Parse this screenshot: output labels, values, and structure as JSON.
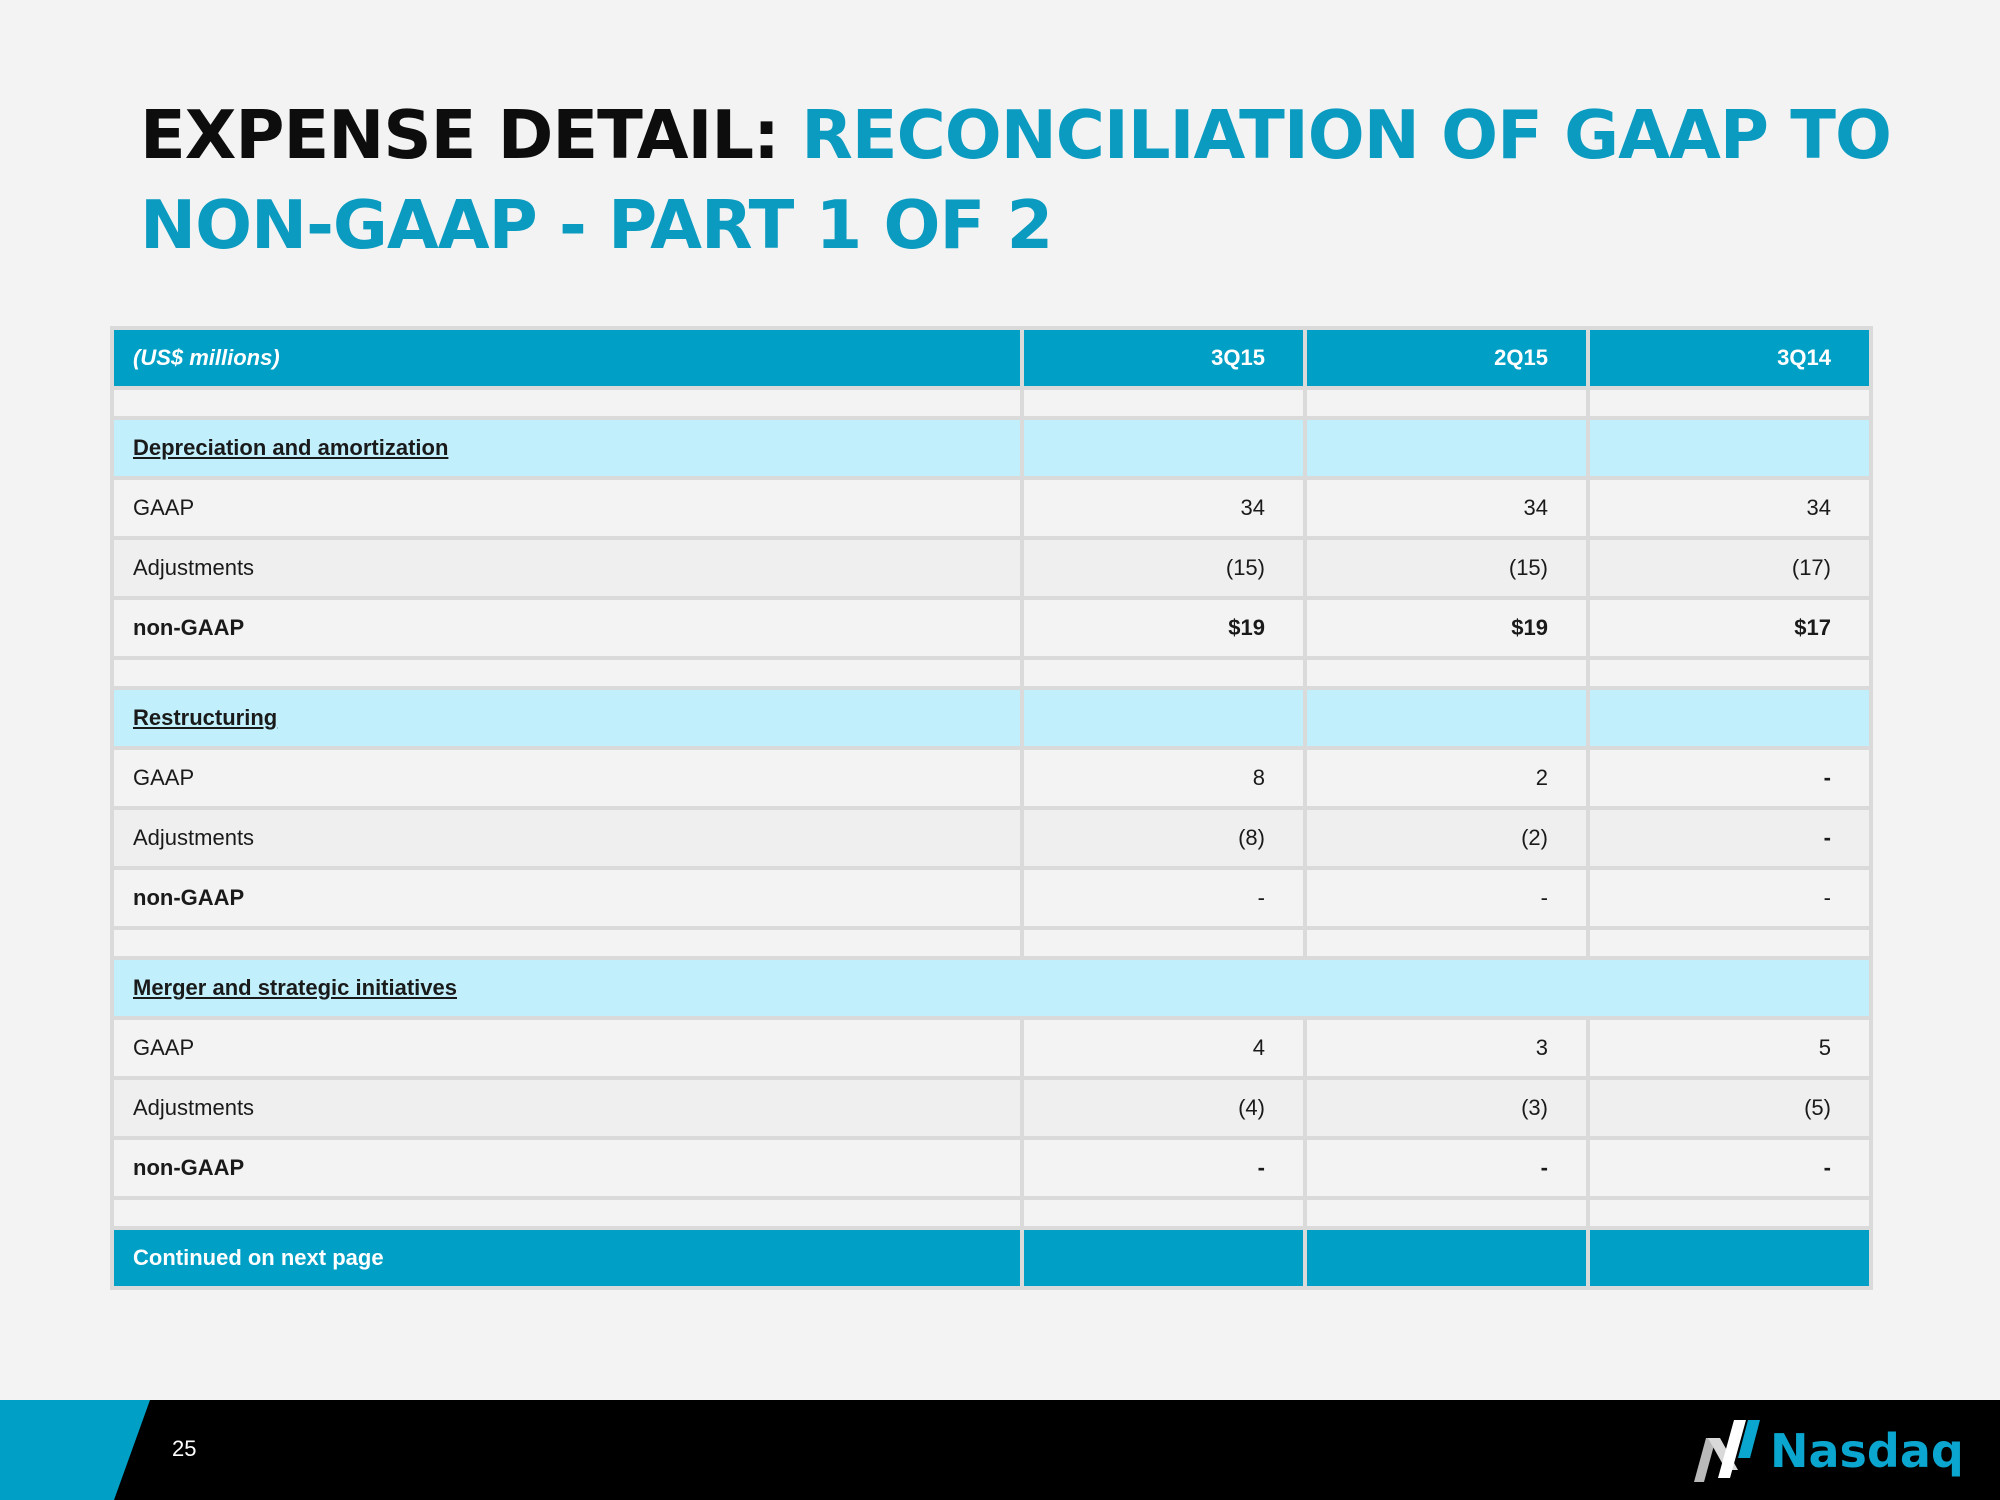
{
  "title": {
    "part_black": "EXPENSE DETAIL:",
    "part_blue": "RECONCILIATION OF GAAP TO NON-GAAP - PART 1 OF 2"
  },
  "table": {
    "header": {
      "label": "(US$ millions)",
      "cols": [
        "3Q15",
        "2Q15",
        "3Q14"
      ]
    },
    "sections": [
      {
        "name": "Depreciation and amortization",
        "rows": [
          {
            "label": "GAAP",
            "values": [
              "34",
              "34",
              "34"
            ]
          },
          {
            "label": "Adjustments",
            "values": [
              "(15)",
              "(15)",
              "(17)"
            ]
          },
          {
            "label": "non-GAAP",
            "values": [
              "$19",
              "$19",
              "$17"
            ]
          }
        ]
      },
      {
        "name": "Restructuring",
        "rows": [
          {
            "label": "GAAP",
            "values": [
              "8",
              "2",
              "-"
            ]
          },
          {
            "label": "Adjustments",
            "values": [
              "(8)",
              "(2)",
              "-"
            ]
          },
          {
            "label": "non-GAAP",
            "values": [
              "-",
              "-",
              "-"
            ]
          }
        ]
      },
      {
        "name": "Merger and strategic initiatives",
        "rows": [
          {
            "label": "GAAP",
            "values": [
              "4",
              "3",
              "5"
            ]
          },
          {
            "label": "Adjustments",
            "values": [
              "(4)",
              "(3)",
              "(5)"
            ]
          },
          {
            "label": "non-GAAP",
            "values": [
              "-",
              "-",
              "-"
            ]
          }
        ]
      }
    ],
    "footer": "Continued on next page"
  },
  "footer": {
    "page_number": "25",
    "logo_text": "Nasdaq",
    "logo_icon": "nasdaq-logo-icon"
  },
  "colors": {
    "accent": "#00a0c6",
    "section_fill": "#c1f0fc",
    "title_blue": "#0b9bc0",
    "background": "#f3f3f3"
  }
}
